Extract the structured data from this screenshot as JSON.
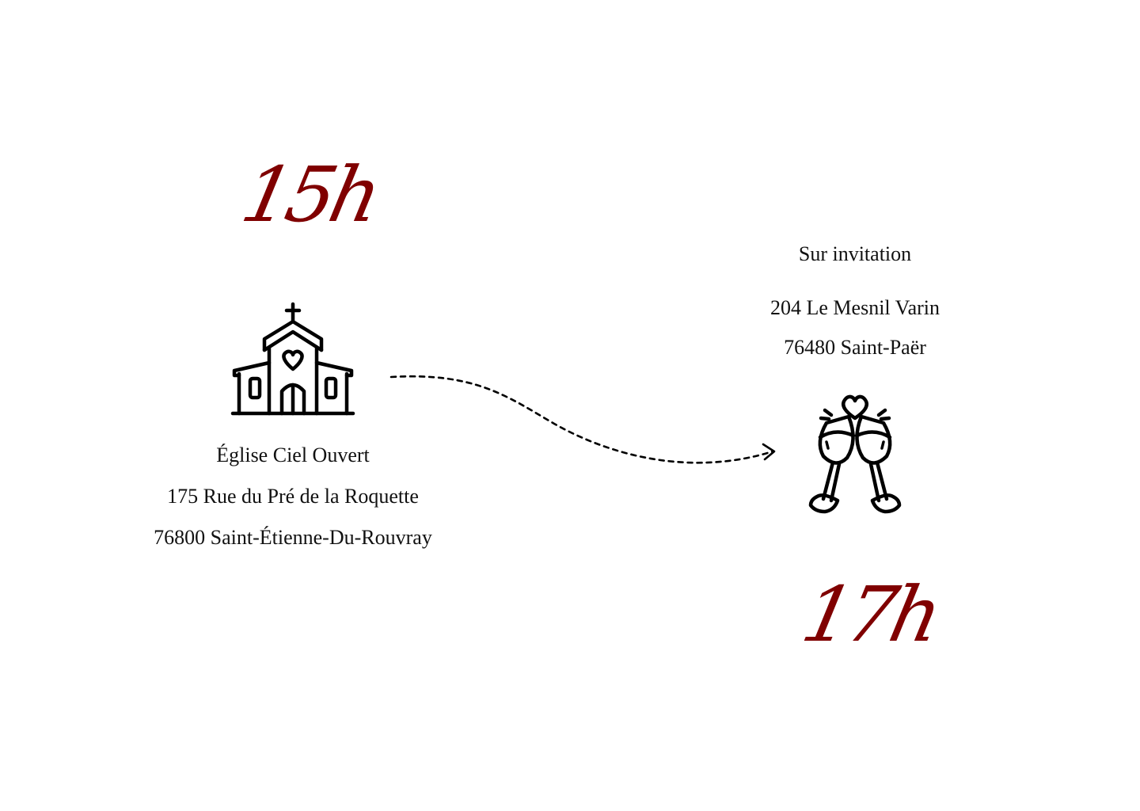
{
  "colors": {
    "accent": "#800000",
    "text": "#111111",
    "background": "#ffffff"
  },
  "ceremony": {
    "time": "15h",
    "icon": "church-icon",
    "venue": "Église Ciel Ouvert",
    "street": "175 Rue du Pré de la Roquette",
    "city": "76800 Saint-Étienne-Du-Rouvray"
  },
  "route": {
    "icon": "dotted-arrow-icon"
  },
  "reception": {
    "time": "17h",
    "icon": "toasting-glasses-heart-icon",
    "note": "Sur invitation",
    "street": "204 Le Mesnil Varin",
    "city": "76480 Saint-Paër"
  }
}
